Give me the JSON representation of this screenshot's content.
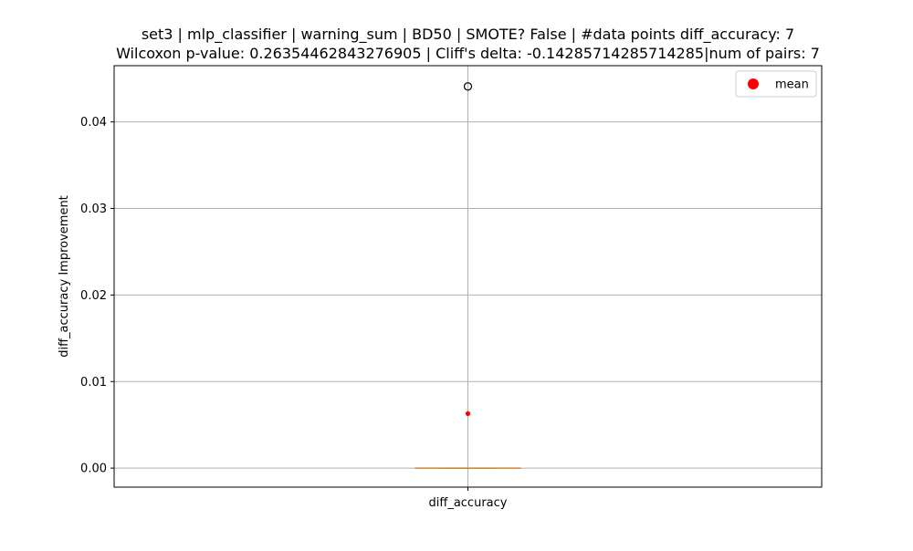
{
  "chart_data": {
    "type": "box",
    "title_line1": "set3 | mlp_classifier | warning_sum | BD50 | SMOTE? False | #data points diff_accuracy: 7",
    "title_line2": "Wilcoxon p-value: 0.26354462843276905 | Cliff's delta: -0.14285714285714285|num of pairs: 7",
    "xlabel": "",
    "ylabel": "diff_accuracy Improvement",
    "categories": [
      "diff_accuracy"
    ],
    "ylim": [
      -0.0022,
      0.0465
    ],
    "yticks": [
      0.0,
      0.01,
      0.02,
      0.03,
      0.04
    ],
    "ytick_labels": [
      "0.00",
      "0.01",
      "0.02",
      "0.03",
      "0.04"
    ],
    "grid": true,
    "box": {
      "q1": 0.0,
      "median": 0.0,
      "q3": 0.0,
      "whisker_low": 0.0,
      "whisker_high": 0.0,
      "outliers": [
        0.0441
      ],
      "mean": 0.0063
    },
    "legend": {
      "position": "upper-right",
      "entries": [
        {
          "label": "mean",
          "marker": "circle",
          "color": "#ff0000"
        }
      ]
    },
    "colors": {
      "median": "#e08a3c",
      "mean": "#ff0000",
      "outlier_edge": "#000000",
      "grid": "#b0b0b0",
      "box": "#000000"
    }
  }
}
